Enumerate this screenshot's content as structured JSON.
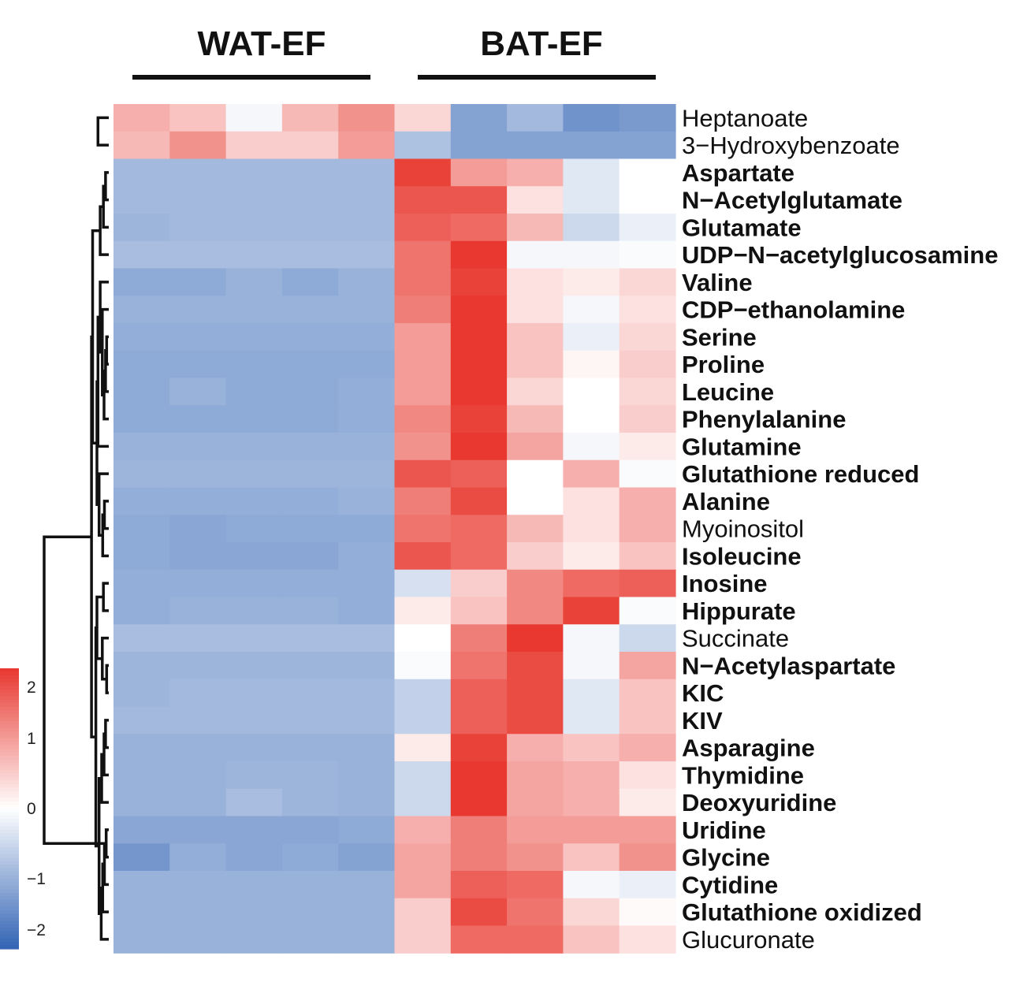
{
  "chart_data": {
    "type": "heatmap",
    "groups": [
      {
        "name": "WAT-EF",
        "columns": 5
      },
      {
        "name": "BAT-EF",
        "columns": 5
      }
    ],
    "color_scale": {
      "min": -2,
      "max": 2,
      "ticks": [
        2,
        1,
        0,
        -1,
        -2
      ],
      "tick_labels": [
        "2",
        "1",
        "0",
        "−1",
        "−2"
      ],
      "low_color": "#3264b4",
      "mid_color": "#ffffff",
      "high_color": "#e8382f"
    },
    "rows": [
      {
        "name": "Heptanoate",
        "bold": false,
        "values": [
          0.8,
          0.6,
          -0.1,
          0.7,
          1.1,
          0.4,
          -1.2,
          -0.9,
          -1.4,
          -1.3
        ]
      },
      {
        "name": "3−Hydroxybenzoate",
        "bold": false,
        "values": [
          0.7,
          1.1,
          0.5,
          0.5,
          1.0,
          -0.8,
          -1.2,
          -1.2,
          -1.2,
          -1.2
        ]
      },
      {
        "name": "Aspartate",
        "bold": true,
        "values": [
          -0.9,
          -0.9,
          -0.9,
          -0.9,
          -0.9,
          1.9,
          1.0,
          0.8,
          -0.3,
          0.0
        ]
      },
      {
        "name": "N−Acetylglutamate",
        "bold": true,
        "values": [
          -0.9,
          -0.9,
          -0.9,
          -0.9,
          -0.9,
          1.7,
          1.7,
          0.3,
          -0.3,
          0.0
        ]
      },
      {
        "name": "Glutamate",
        "bold": true,
        "values": [
          -0.95,
          -0.9,
          -0.9,
          -0.9,
          -0.9,
          1.6,
          1.5,
          0.7,
          -0.5,
          -0.2
        ]
      },
      {
        "name": "UDP−N−acetylglucosamine",
        "bold": true,
        "values": [
          -0.85,
          -0.85,
          -0.85,
          -0.85,
          -0.85,
          1.4,
          2.0,
          -0.1,
          -0.1,
          -0.05
        ]
      },
      {
        "name": "Valine",
        "bold": true,
        "values": [
          -1.1,
          -1.1,
          -1.0,
          -1.1,
          -1.0,
          1.4,
          1.9,
          0.3,
          0.2,
          0.4
        ]
      },
      {
        "name": "CDP−ethanolamine",
        "bold": true,
        "values": [
          -1.0,
          -1.0,
          -1.0,
          -1.0,
          -1.0,
          1.3,
          2.0,
          0.3,
          -0.1,
          0.3
        ]
      },
      {
        "name": "Serine",
        "bold": true,
        "values": [
          -1.05,
          -1.05,
          -1.05,
          -1.05,
          -1.05,
          1.0,
          2.0,
          0.6,
          -0.2,
          0.4
        ]
      },
      {
        "name": "Proline",
        "bold": true,
        "values": [
          -1.1,
          -1.1,
          -1.1,
          -1.1,
          -1.1,
          1.0,
          2.0,
          0.6,
          0.1,
          0.5
        ]
      },
      {
        "name": "Leucine",
        "bold": true,
        "values": [
          -1.1,
          -1.0,
          -1.1,
          -1.1,
          -1.05,
          1.0,
          2.0,
          0.4,
          0.0,
          0.4
        ]
      },
      {
        "name": "Phenylalanine",
        "bold": true,
        "values": [
          -1.1,
          -1.1,
          -1.1,
          -1.1,
          -1.05,
          1.2,
          1.9,
          0.7,
          0.0,
          0.5
        ]
      },
      {
        "name": "Glutamine",
        "bold": true,
        "values": [
          -1.0,
          -1.0,
          -1.0,
          -1.0,
          -1.0,
          1.1,
          2.0,
          0.9,
          -0.1,
          0.2
        ]
      },
      {
        "name": "Glutathione reduced",
        "bold": true,
        "values": [
          -0.95,
          -0.95,
          -0.95,
          -0.95,
          -0.95,
          1.7,
          1.6,
          0.0,
          0.8,
          -0.05
        ]
      },
      {
        "name": "Alanine",
        "bold": true,
        "values": [
          -1.05,
          -1.05,
          -1.05,
          -1.05,
          -1.0,
          1.3,
          1.8,
          0.0,
          0.3,
          0.8
        ]
      },
      {
        "name": "Myoinositol",
        "bold": false,
        "values": [
          -1.1,
          -1.15,
          -1.1,
          -1.1,
          -1.1,
          1.4,
          1.5,
          0.7,
          0.3,
          0.8
        ]
      },
      {
        "name": "Isoleucine",
        "bold": true,
        "values": [
          -1.1,
          -1.15,
          -1.15,
          -1.15,
          -1.05,
          1.7,
          1.5,
          0.5,
          0.2,
          0.6
        ]
      },
      {
        "name": "Inosine",
        "bold": true,
        "values": [
          -1.05,
          -1.05,
          -1.05,
          -1.05,
          -1.05,
          -0.4,
          0.5,
          1.2,
          1.5,
          1.6
        ]
      },
      {
        "name": "Hippurate",
        "bold": true,
        "values": [
          -1.05,
          -1.0,
          -1.0,
          -1.0,
          -1.05,
          0.2,
          0.6,
          1.2,
          1.9,
          -0.05
        ]
      },
      {
        "name": "Succinate",
        "bold": false,
        "values": [
          -0.85,
          -0.85,
          -0.85,
          -0.85,
          -0.85,
          0.0,
          1.3,
          2.0,
          -0.1,
          -0.5
        ]
      },
      {
        "name": "N−Acetylaspartate",
        "bold": true,
        "values": [
          -0.95,
          -0.95,
          -0.95,
          -0.95,
          -0.95,
          -0.05,
          1.4,
          1.8,
          -0.1,
          0.9
        ]
      },
      {
        "name": "KIC",
        "bold": true,
        "values": [
          -0.95,
          -0.9,
          -0.9,
          -0.9,
          -0.9,
          -0.6,
          1.6,
          1.8,
          -0.3,
          0.6
        ]
      },
      {
        "name": "KIV",
        "bold": true,
        "values": [
          -0.9,
          -0.9,
          -0.9,
          -0.9,
          -0.9,
          -0.6,
          1.6,
          1.8,
          -0.3,
          0.6
        ]
      },
      {
        "name": "Asparagine",
        "bold": true,
        "values": [
          -1.0,
          -1.0,
          -1.0,
          -1.0,
          -1.0,
          0.2,
          1.9,
          0.8,
          0.6,
          0.8
        ]
      },
      {
        "name": "Thymidine",
        "bold": true,
        "values": [
          -1.0,
          -1.0,
          -0.95,
          -0.95,
          -1.0,
          -0.5,
          2.0,
          0.9,
          0.8,
          0.3
        ]
      },
      {
        "name": "Deoxyuridine",
        "bold": true,
        "values": [
          -1.0,
          -1.0,
          -0.85,
          -0.95,
          -1.0,
          -0.5,
          2.0,
          0.9,
          0.8,
          0.2
        ]
      },
      {
        "name": "Uridine",
        "bold": true,
        "values": [
          -1.15,
          -1.15,
          -1.15,
          -1.15,
          -1.1,
          0.8,
          1.3,
          1.0,
          1.0,
          1.0
        ]
      },
      {
        "name": "Glycine",
        "bold": true,
        "values": [
          -1.35,
          -1.05,
          -1.15,
          -1.1,
          -1.2,
          0.9,
          1.3,
          1.1,
          0.6,
          1.1
        ]
      },
      {
        "name": "Cytidine",
        "bold": true,
        "values": [
          -1.0,
          -1.0,
          -1.0,
          -1.0,
          -1.0,
          0.9,
          1.6,
          1.5,
          -0.1,
          -0.2
        ]
      },
      {
        "name": "Glutathione oxidized",
        "bold": true,
        "values": [
          -1.0,
          -1.0,
          -1.0,
          -1.0,
          -1.0,
          0.5,
          1.8,
          1.4,
          0.4,
          0.05
        ]
      },
      {
        "name": "Glucuronate",
        "bold": false,
        "values": [
          -1.0,
          -1.0,
          -1.0,
          -1.0,
          -1.0,
          0.5,
          1.5,
          1.5,
          0.6,
          0.3
        ]
      }
    ],
    "dendrogram": {
      "merges": [
        [
          0,
          1,
          0.5
        ],
        [
          26,
          27,
          0.12
        ],
        [
          -2,
          28,
          0.2
        ],
        [
          -3,
          29,
          0.28
        ],
        [
          -4,
          30,
          0.35
        ],
        [
          22,
          23,
          0.15
        ],
        [
          -6,
          24,
          0.22
        ],
        [
          -7,
          25,
          0.33
        ],
        [
          -8,
          -5,
          0.45
        ],
        [
          20,
          21,
          0.1
        ],
        [
          19,
          -10,
          0.3
        ],
        [
          17,
          18,
          0.25
        ],
        [
          -12,
          -11,
          0.55
        ],
        [
          -13,
          -9,
          0.6
        ],
        [
          2,
          3,
          0.15
        ],
        [
          -15,
          4,
          0.25
        ],
        [
          -16,
          5,
          0.4
        ],
        [
          8,
          9,
          0.1
        ],
        [
          -18,
          10,
          0.15
        ],
        [
          -19,
          11,
          0.22
        ],
        [
          -20,
          7,
          0.3
        ],
        [
          -21,
          6,
          0.4
        ],
        [
          -22,
          12,
          0.5
        ],
        [
          14,
          15,
          0.2
        ],
        [
          -24,
          16,
          0.28
        ],
        [
          -25,
          13,
          0.45
        ],
        [
          -23,
          -26,
          0.55
        ],
        [
          -17,
          -27,
          0.75
        ],
        [
          -28,
          -14,
          0.8
        ],
        [
          -2,
          -29,
          3.0
        ]
      ]
    }
  }
}
